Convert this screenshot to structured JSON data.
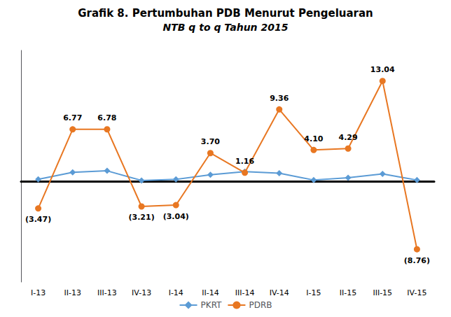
{
  "chart_data": {
    "type": "line",
    "title": "Grafik 8. Pertumbuhan PDB Menurut Pengeluaran",
    "subtitle": "NTB q to q Tahun 2015",
    "categories": [
      "I-13",
      "II-13",
      "III-13",
      "IV-13",
      "I-14",
      "II-14",
      "III-14",
      "IV-14",
      "I-15",
      "II-15",
      "III-15",
      "IV-15"
    ],
    "series": [
      {
        "name": "PKRT",
        "color": "#5B9BD5",
        "marker": "diamond",
        "values": [
          0.3,
          1.2,
          1.4,
          0.15,
          0.3,
          0.9,
          1.3,
          1.1,
          0.2,
          0.5,
          1.0,
          0.2
        ]
      },
      {
        "name": "PDRB",
        "color": "#E87722",
        "marker": "circle",
        "data_labels": true,
        "values": [
          -3.47,
          6.77,
          6.78,
          -3.21,
          -3.04,
          3.7,
          1.16,
          9.36,
          4.1,
          4.29,
          13.04,
          -8.76
        ],
        "value_labels": [
          "(3.47)",
          "6.77",
          "6.78",
          "(3.21)",
          "(3.04)",
          "3.70",
          "1.16",
          "9.36",
          "4.10",
          "4.29",
          "13.04",
          "(8.76)"
        ]
      }
    ],
    "ylim": [
      -13,
      17
    ],
    "tick_labels": "x",
    "grid": false,
    "legend": "bottom"
  }
}
